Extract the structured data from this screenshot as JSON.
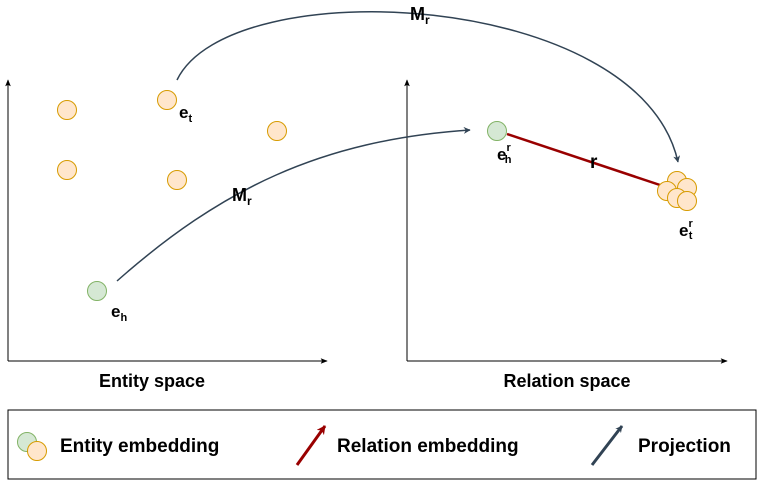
{
  "colors": {
    "entity_fill": "#ffe6cc",
    "entity_stroke": "#d79b00",
    "head_fill": "#d5e8d4",
    "head_stroke": "#82b366",
    "relation_arrow": "#990000",
    "projection_arrow": "#314354"
  },
  "left_panel": {
    "caption": "Entity space"
  },
  "right_panel": {
    "caption": "Relation space"
  },
  "labels": {
    "e_t": {
      "base": "e",
      "sub": "t"
    },
    "e_h": {
      "base": "e",
      "sub": "h"
    },
    "M_r_top": {
      "base": "M",
      "sub": "r"
    },
    "M_r_mid": {
      "base": "M",
      "sub": "r"
    },
    "e_h_r": {
      "base": "e",
      "sub": "h",
      "sup": "r"
    },
    "e_t_r": {
      "base": "e",
      "sub": "t",
      "sup": "r"
    },
    "r": "r"
  },
  "legend": {
    "entity_embedding": "Entity embedding",
    "relation_embedding": "Relation embedding",
    "projection": "Projection"
  },
  "icons": [
    "entity-embedding-icon",
    "relation-arrow-icon",
    "projection-arrow-icon"
  ]
}
